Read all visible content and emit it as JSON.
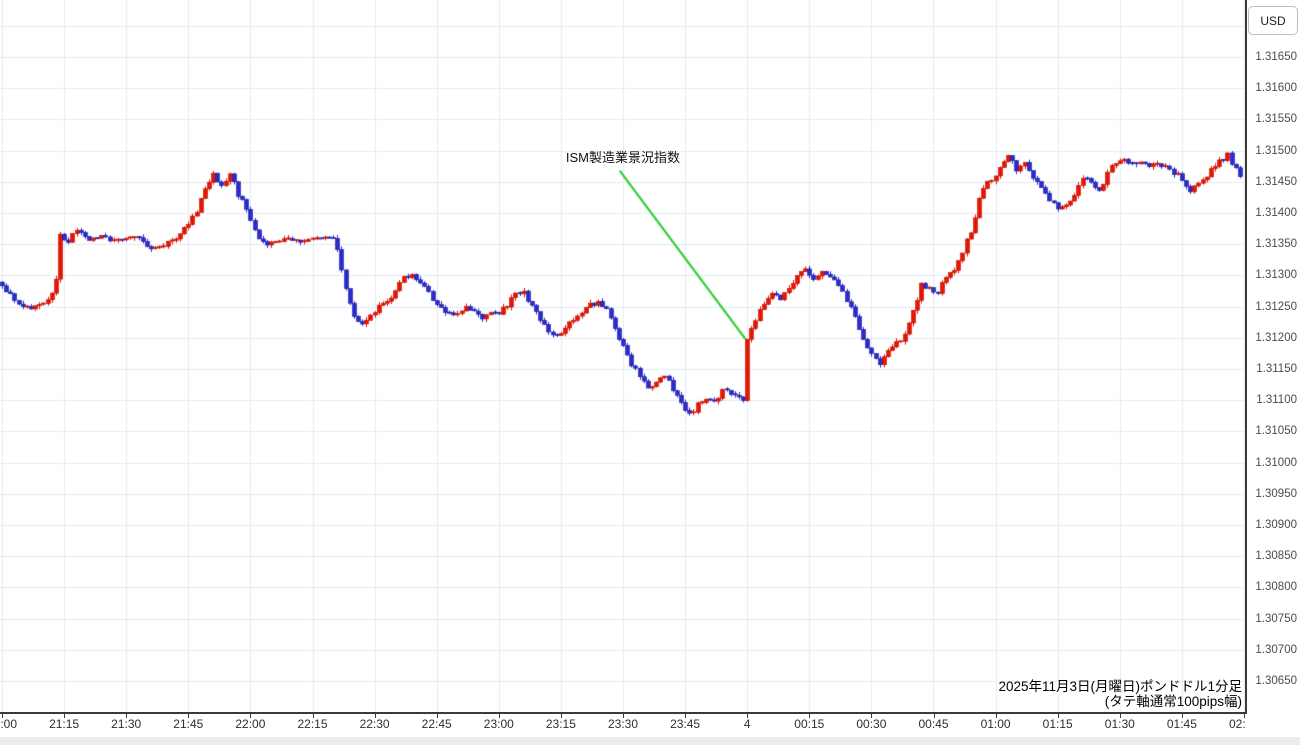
{
  "currency_label": "USD",
  "footer": {
    "line1": "2025年11月3日(月曜日)ポンドドル1分足",
    "line2": "(タテ軸通常100pips幅)"
  },
  "chart_data": {
    "type": "candlestick",
    "instrument": "ポンドドル",
    "interval": "1分足",
    "date": "2025年11月3日(月曜日)",
    "axis_note": "タテ軸通常100pips幅",
    "x_tick_labels": [
      "21:00",
      "21:15",
      "21:30",
      "21:45",
      "22:00",
      "22:15",
      "22:30",
      "22:45",
      "23:00",
      "23:15",
      "23:30",
      "23:45",
      "4",
      "00:15",
      "00:30",
      "00:45",
      "01:00",
      "01:15",
      "01:30",
      "01:45",
      "02:00"
    ],
    "x_tick_interval_min": 15,
    "x_total_minutes": 300,
    "y_labels": [
      "1.31650",
      "1.31600",
      "1.31550",
      "1.31500",
      "1.31450",
      "1.31400",
      "1.31350",
      "1.31300",
      "1.31250",
      "1.31200",
      "1.31150",
      "1.31100",
      "1.31050",
      "1.31000",
      "1.30950",
      "1.30900",
      "1.30850",
      "1.30800",
      "1.30750",
      "1.30700",
      "1.30650"
    ],
    "y_top_label": 1.3165,
    "y_bottom_label": 1.3065,
    "y_grid_top": 1.317,
    "y_step": 0.0005,
    "grid": true,
    "colors": {
      "up": "#e61400",
      "up_border": "#c00e00",
      "down": "#2a2acd",
      "down_border": "#1c1ca8",
      "grid": "#e2ecf3",
      "axis": "#3a3a3a",
      "annotation": "#33cd33"
    },
    "annotation": {
      "text": "ISM製造業景況指数",
      "text_pos": {
        "minute": 136.2,
        "price": 1.31505
      },
      "line_from": {
        "minute": 149.2,
        "price": 1.31468
      },
      "line_to": {
        "minute": 179.6,
        "price": 1.31198
      }
    },
    "price_path": [
      [
        0,
        1.31285
      ],
      [
        2,
        1.3127
      ],
      [
        4,
        1.31255
      ],
      [
        7,
        1.31248
      ],
      [
        10,
        1.31252
      ],
      [
        12,
        1.3127
      ],
      [
        13,
        1.3129
      ],
      [
        14,
        1.31365
      ],
      [
        16,
        1.31355
      ],
      [
        18,
        1.3137
      ],
      [
        21,
        1.31358
      ],
      [
        24,
        1.31362
      ],
      [
        27,
        1.31355
      ],
      [
        30,
        1.31362
      ],
      [
        33,
        1.31358
      ],
      [
        36,
        1.31342
      ],
      [
        39,
        1.31345
      ],
      [
        42,
        1.31362
      ],
      [
        45,
        1.31385
      ],
      [
        47,
        1.314
      ],
      [
        49,
        1.3144
      ],
      [
        51,
        1.31465
      ],
      [
        53,
        1.31445
      ],
      [
        55,
        1.3146
      ],
      [
        57,
        1.3143
      ],
      [
        59,
        1.31405
      ],
      [
        61,
        1.31375
      ],
      [
        63,
        1.3135
      ],
      [
        66,
        1.31352
      ],
      [
        69,
        1.3136
      ],
      [
        72,
        1.31355
      ],
      [
        75,
        1.31358
      ],
      [
        78,
        1.31362
      ],
      [
        80,
        1.31355
      ],
      [
        81,
        1.31338
      ],
      [
        83,
        1.31275
      ],
      [
        85,
        1.31238
      ],
      [
        87,
        1.31222
      ],
      [
        89,
        1.31232
      ],
      [
        91,
        1.3125
      ],
      [
        93,
        1.31262
      ],
      [
        95,
        1.31272
      ],
      [
        97,
        1.31295
      ],
      [
        99,
        1.31302
      ],
      [
        101,
        1.31288
      ],
      [
        103,
        1.3127
      ],
      [
        105,
        1.31255
      ],
      [
        107,
        1.31242
      ],
      [
        110,
        1.31238
      ],
      [
        112,
        1.3125
      ],
      [
        114,
        1.31242
      ],
      [
        116,
        1.3123
      ],
      [
        118,
        1.31242
      ],
      [
        120,
        1.31238
      ],
      [
        122,
        1.31252
      ],
      [
        124,
        1.31268
      ],
      [
        126,
        1.31272
      ],
      [
        128,
        1.31255
      ],
      [
        130,
        1.31228
      ],
      [
        132,
        1.31205
      ],
      [
        134,
        1.31202
      ],
      [
        136,
        1.31215
      ],
      [
        138,
        1.31232
      ],
      [
        140,
        1.3124
      ],
      [
        142,
        1.31252
      ],
      [
        144,
        1.31258
      ],
      [
        146,
        1.31245
      ],
      [
        148,
        1.31215
      ],
      [
        150,
        1.31185
      ],
      [
        152,
        1.3116
      ],
      [
        154,
        1.31135
      ],
      [
        156,
        1.31118
      ],
      [
        158,
        1.31125
      ],
      [
        160,
        1.31138
      ],
      [
        162,
        1.3112
      ],
      [
        164,
        1.31095
      ],
      [
        166,
        1.31078
      ],
      [
        168,
        1.31092
      ],
      [
        170,
        1.31102
      ],
      [
        172,
        1.31098
      ],
      [
        174,
        1.31118
      ],
      [
        176,
        1.31112
      ],
      [
        178,
        1.31108
      ],
      [
        179,
        1.31102
      ],
      [
        180,
        1.312
      ],
      [
        182,
        1.31228
      ],
      [
        184,
        1.31252
      ],
      [
        186,
        1.31272
      ],
      [
        188,
        1.31262
      ],
      [
        190,
        1.31275
      ],
      [
        192,
        1.31298
      ],
      [
        194,
        1.3131
      ],
      [
        196,
        1.31295
      ],
      [
        198,
        1.31308
      ],
      [
        200,
        1.31298
      ],
      [
        202,
        1.31282
      ],
      [
        204,
        1.3126
      ],
      [
        206,
        1.31235
      ],
      [
        208,
        1.31195
      ],
      [
        210,
        1.31172
      ],
      [
        212,
        1.31158
      ],
      [
        214,
        1.31175
      ],
      [
        216,
        1.3119
      ],
      [
        218,
        1.31205
      ],
      [
        220,
        1.31242
      ],
      [
        222,
        1.31288
      ],
      [
        224,
        1.31278
      ],
      [
        226,
        1.31272
      ],
      [
        228,
        1.31295
      ],
      [
        230,
        1.31312
      ],
      [
        232,
        1.31335
      ],
      [
        234,
        1.31372
      ],
      [
        236,
        1.3142
      ],
      [
        238,
        1.31448
      ],
      [
        240,
        1.31462
      ],
      [
        242,
        1.31478
      ],
      [
        243,
        1.3149
      ],
      [
        245,
        1.3147
      ],
      [
        247,
        1.31478
      ],
      [
        249,
        1.31455
      ],
      [
        251,
        1.31438
      ],
      [
        253,
        1.3142
      ],
      [
        255,
        1.31408
      ],
      [
        257,
        1.31412
      ],
      [
        259,
        1.31432
      ],
      [
        261,
        1.31458
      ],
      [
        263,
        1.31448
      ],
      [
        265,
        1.31438
      ],
      [
        267,
        1.31462
      ],
      [
        269,
        1.3148
      ],
      [
        271,
        1.31488
      ],
      [
        273,
        1.31478
      ],
      [
        275,
        1.31482
      ],
      [
        277,
        1.31475
      ],
      [
        279,
        1.3148
      ],
      [
        281,
        1.31472
      ],
      [
        283,
        1.31465
      ],
      [
        285,
        1.31455
      ],
      [
        287,
        1.31435
      ],
      [
        289,
        1.31445
      ],
      [
        291,
        1.31462
      ],
      [
        293,
        1.31475
      ],
      [
        295,
        1.31488
      ],
      [
        296,
        1.31495
      ],
      [
        298,
        1.3147
      ],
      [
        299,
        1.3146
      ]
    ]
  }
}
